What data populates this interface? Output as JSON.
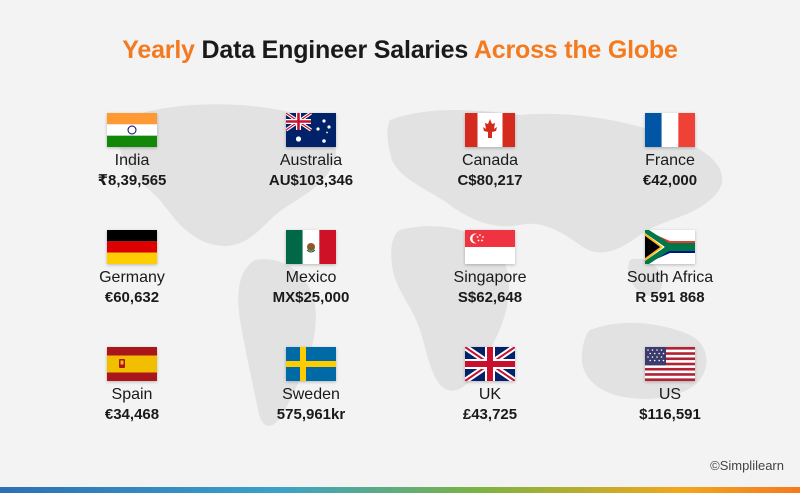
{
  "title": {
    "part1": "Yearly",
    "part2": "Data Engineer Salaries",
    "part3": "Across the Globe"
  },
  "countries": [
    {
      "name": "India",
      "salary": "₹8,39,565"
    },
    {
      "name": "Australia",
      "salary": "AU$103,346"
    },
    {
      "name": "Canada",
      "salary": "C$80,217"
    },
    {
      "name": "France",
      "salary": "€42,000"
    },
    {
      "name": "Germany",
      "salary": "€60,632"
    },
    {
      "name": "Mexico",
      "salary": "MX$25,000"
    },
    {
      "name": "Singapore",
      "salary": "S$62,648"
    },
    {
      "name": "South Africa",
      "salary": "R 591 868"
    },
    {
      "name": "Spain",
      "salary": "€34,468"
    },
    {
      "name": "Sweden",
      "salary": "575,961kr"
    },
    {
      "name": "UK",
      "salary": "£43,725"
    },
    {
      "name": "US",
      "salary": "$116,591"
    }
  ],
  "credit": "©Simplilearn",
  "colors": {
    "accent": "#f47a20",
    "text": "#1a1a1a",
    "background": "#f3f3f3"
  }
}
